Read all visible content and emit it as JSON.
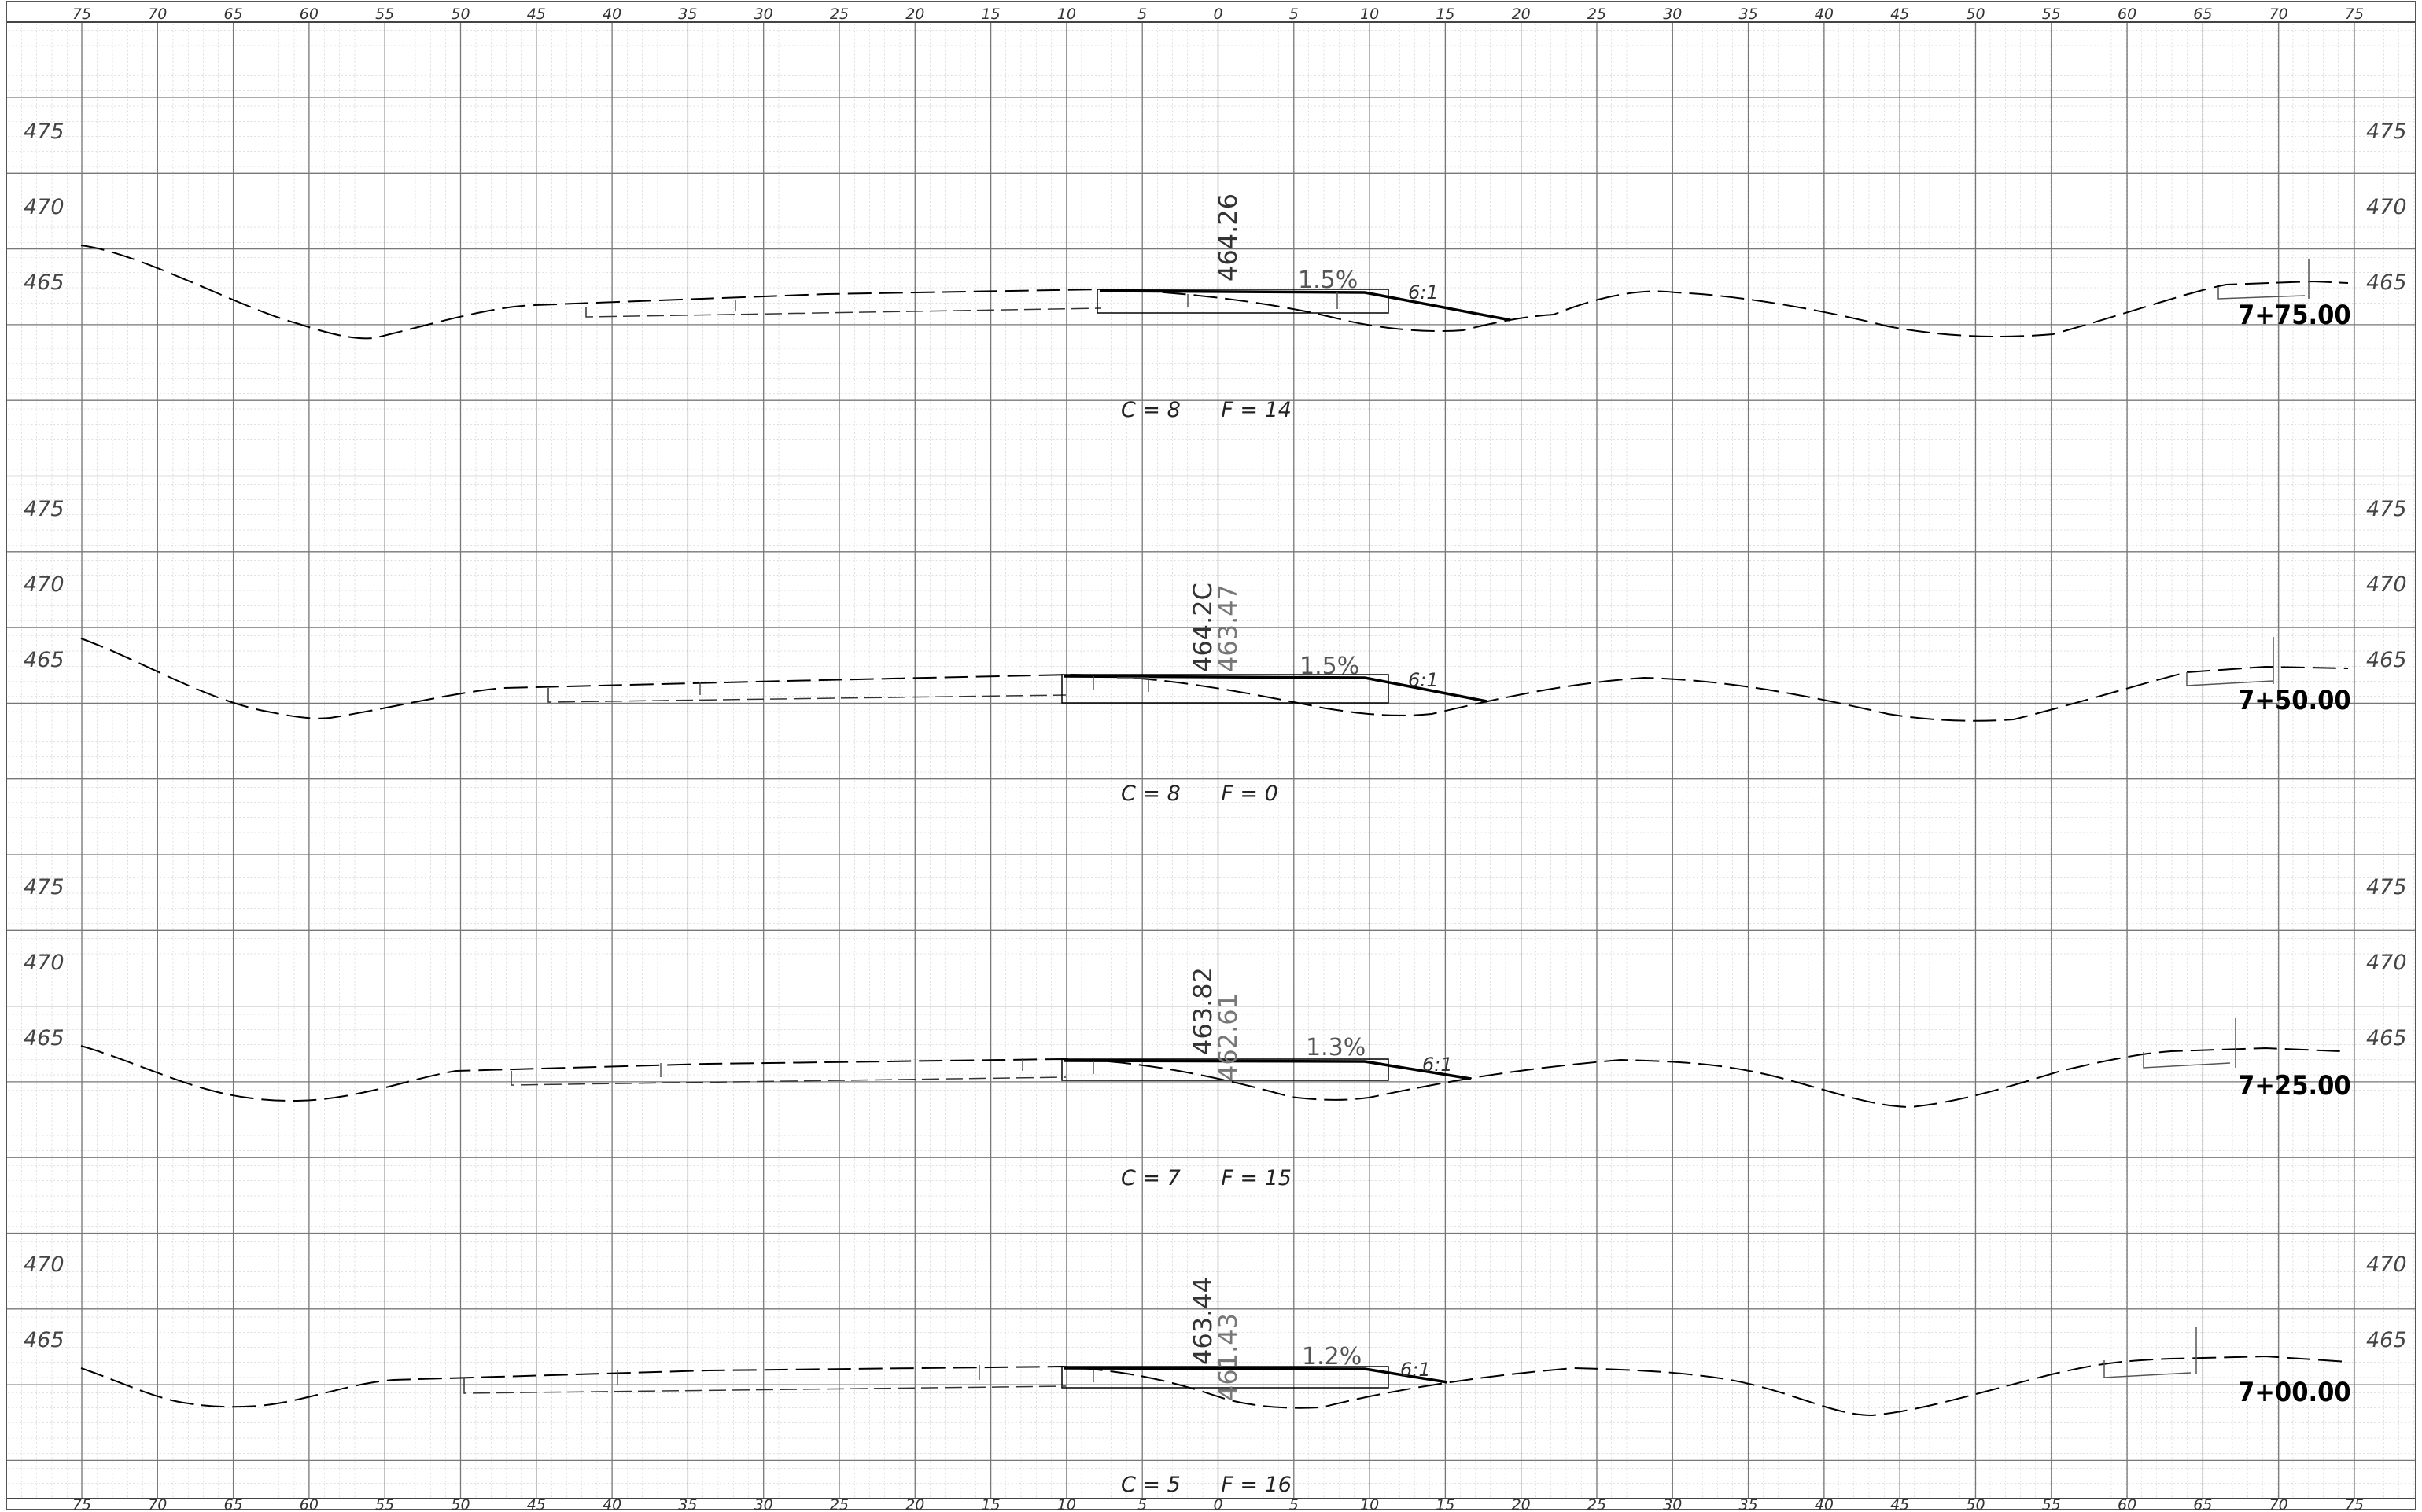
{
  "sheet": {
    "offset_labels": [
      "75",
      "70",
      "65",
      "60",
      "55",
      "50",
      "45",
      "40",
      "35",
      "30",
      "25",
      "20",
      "15",
      "10",
      "5",
      "0",
      "5",
      "10",
      "15",
      "20",
      "25",
      "30",
      "35",
      "40",
      "45",
      "50",
      "55",
      "60",
      "65",
      "70",
      "75"
    ]
  },
  "sections": [
    {
      "station": "7+75.00",
      "elev_labels": [
        "475",
        "470",
        "465"
      ],
      "profile_elev": "464.26",
      "existing_elev": "",
      "cross_slope": "1.5%",
      "side_slope": "6:1",
      "cut_fill": "C = 8      F = 14"
    },
    {
      "station": "7+50.00",
      "elev_labels": [
        "475",
        "470",
        "465"
      ],
      "profile_elev": "464.2C",
      "existing_elev": "463.47",
      "cross_slope": "1.5%",
      "side_slope": "6:1",
      "cut_fill": "C = 8      F = 0"
    },
    {
      "station": "7+25.00",
      "elev_labels": [
        "475",
        "470",
        "465"
      ],
      "profile_elev": "463.82",
      "existing_elev": "462.61",
      "cross_slope": "1.3%",
      "side_slope": "6:1",
      "cut_fill": "C = 7      F = 15"
    },
    {
      "station": "7+00.00",
      "elev_labels": [
        "470",
        "465"
      ],
      "profile_elev": "463.44",
      "existing_elev": "461.43",
      "cross_slope": "1.2%",
      "side_slope": "6:1",
      "cut_fill": "C = 5      F = 16"
    }
  ],
  "colors": {
    "grid_major": "#6f6f6f",
    "grid_minor": "#c8c8c8",
    "ink": "#000000"
  }
}
